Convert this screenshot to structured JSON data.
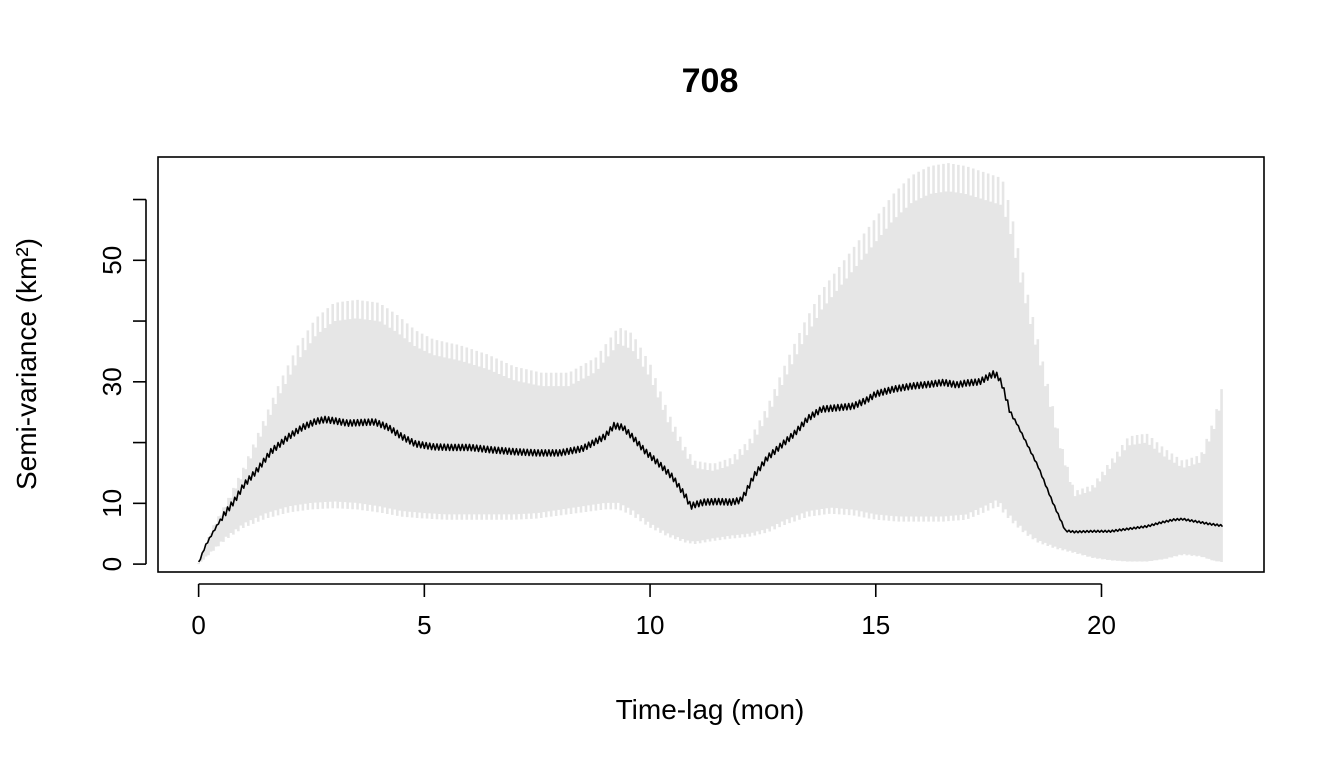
{
  "chart_data": {
    "type": "line",
    "title": "708",
    "xlabel": "Time-lag (mon)",
    "ylabel": "Semi-variance (km²)",
    "xlim": [
      -0.9,
      23.6
    ],
    "ylim": [
      -1.3,
      67
    ],
    "x_ticks": [
      0,
      5,
      10,
      15,
      20
    ],
    "x_tick_labels": [
      "0",
      "5",
      "10",
      "15",
      "20"
    ],
    "y_ticks": [
      0,
      10,
      20,
      30,
      40,
      50,
      60
    ],
    "y_tick_labels": [
      "0",
      "10",
      "",
      "30",
      "",
      "50",
      ""
    ],
    "grid": false,
    "legend": "none",
    "colors": {
      "line": "#000000",
      "band": "#e6e6e6",
      "axes": "#000000"
    },
    "series": [
      {
        "role": "estimate",
        "x": [
          0,
          0.15,
          0.3,
          0.5,
          0.8,
          1.0,
          1.3,
          1.6,
          2.0,
          2.3,
          2.6,
          2.8,
          3.0,
          3.3,
          3.6,
          3.9,
          4.2,
          4.5,
          4.8,
          5.2,
          5.6,
          6.0,
          6.5,
          7.0,
          7.5,
          8.0,
          8.5,
          9.0,
          9.2,
          9.4,
          9.6,
          9.9,
          10.2,
          10.5,
          10.8,
          10.9,
          11.0,
          11.2,
          11.5,
          11.8,
          12.0,
          12.1,
          12.3,
          12.6,
          12.9,
          13.2,
          13.5,
          13.8,
          14.1,
          14.5,
          14.8,
          15.0,
          15.4,
          15.8,
          16.2,
          16.5,
          16.8,
          17.0,
          17.3,
          17.6,
          17.7,
          17.8,
          17.9,
          18.0,
          18.1,
          18.3,
          18.6,
          18.9,
          19.2,
          19.4,
          19.8,
          20.2,
          20.6,
          21.0,
          21.3,
          21.6,
          21.8,
          22.1,
          22.4,
          22.7
        ],
        "y": [
          0.2,
          3.0,
          5.0,
          7.5,
          10.5,
          13.0,
          15.5,
          18.5,
          21.0,
          22.5,
          23.5,
          23.8,
          23.6,
          23.2,
          23.3,
          23.4,
          22.5,
          21.0,
          19.8,
          19.3,
          19.2,
          19.2,
          18.8,
          18.5,
          18.3,
          18.3,
          19.0,
          21.0,
          22.8,
          22.5,
          21.0,
          18.5,
          16.5,
          14.3,
          11.0,
          9.5,
          9.8,
          10.2,
          10.3,
          10.2,
          10.5,
          11.5,
          14.5,
          17.5,
          19.5,
          21.5,
          24.0,
          25.5,
          25.7,
          26.0,
          27.0,
          28.0,
          28.8,
          29.3,
          29.6,
          29.9,
          29.5,
          29.8,
          30.0,
          31.3,
          31.0,
          29.5,
          27.0,
          24.5,
          23.5,
          20.5,
          16.0,
          10.5,
          5.5,
          5.3,
          5.4,
          5.4,
          5.8,
          6.2,
          6.8,
          7.3,
          7.4,
          7.0,
          6.6,
          6.3
        ]
      },
      {
        "role": "band-upper",
        "x": [
          0,
          0.3,
          0.6,
          1.0,
          1.4,
          1.8,
          2.2,
          2.6,
          3.0,
          3.5,
          4.0,
          4.4,
          4.8,
          5.2,
          5.8,
          6.4,
          7.0,
          7.6,
          8.2,
          8.8,
          9.3,
          9.6,
          10.0,
          10.4,
          10.8,
          11.0,
          11.4,
          11.8,
          12.2,
          12.6,
          13.0,
          13.4,
          13.8,
          14.2,
          14.6,
          15.0,
          15.4,
          15.8,
          16.2,
          16.6,
          17.0,
          17.4,
          17.8,
          18.0,
          18.2,
          18.5,
          18.8,
          19.1,
          19.4,
          19.8,
          20.2,
          20.6,
          21.0,
          21.4,
          21.8,
          22.2,
          22.5,
          22.7
        ],
        "y": [
          0.2,
          6.0,
          10.0,
          16.0,
          23.0,
          30.0,
          36.0,
          40.5,
          43.0,
          43.5,
          43.0,
          41.0,
          38.5,
          37.0,
          36.0,
          34.5,
          32.5,
          31.5,
          31.5,
          34.0,
          39.0,
          38.0,
          33.0,
          25.0,
          19.0,
          17.0,
          16.5,
          17.5,
          20.5,
          26.0,
          33.0,
          39.5,
          45.0,
          49.0,
          53.0,
          57.0,
          61.0,
          64.0,
          65.5,
          66.0,
          65.5,
          64.5,
          63.5,
          58.0,
          50.0,
          40.0,
          30.0,
          20.0,
          12.0,
          13.0,
          17.0,
          21.0,
          21.5,
          19.0,
          17.0,
          18.0,
          24.0,
          30.0
        ]
      },
      {
        "role": "band-lower",
        "x": [
          0,
          0.3,
          0.6,
          1.0,
          1.5,
          2.0,
          2.5,
          3.0,
          3.5,
          4.0,
          4.5,
          5.0,
          5.5,
          6.0,
          6.5,
          7.0,
          7.5,
          8.0,
          8.5,
          9.0,
          9.3,
          9.6,
          10.0,
          10.4,
          10.8,
          11.0,
          11.4,
          11.8,
          12.2,
          12.6,
          13.0,
          13.5,
          14.0,
          14.5,
          15.0,
          15.5,
          16.0,
          16.5,
          17.0,
          17.4,
          17.7,
          18.0,
          18.3,
          18.6,
          19.0,
          19.4,
          19.8,
          20.2,
          20.6,
          21.0,
          21.4,
          21.8,
          22.2,
          22.5,
          22.7
        ],
        "y": [
          0.0,
          2.0,
          4.0,
          6.0,
          7.5,
          8.5,
          9.0,
          9.2,
          9.0,
          8.5,
          7.8,
          7.5,
          7.3,
          7.3,
          7.3,
          7.3,
          7.5,
          8.0,
          8.5,
          9.0,
          9.0,
          8.0,
          6.0,
          4.5,
          3.5,
          3.3,
          3.8,
          4.2,
          4.5,
          5.2,
          6.5,
          7.8,
          8.3,
          8.0,
          7.3,
          7.0,
          7.0,
          7.0,
          7.3,
          8.5,
          9.5,
          7.0,
          5.0,
          3.5,
          2.5,
          1.8,
          1.0,
          0.6,
          0.4,
          0.4,
          0.8,
          1.5,
          1.2,
          0.5,
          0.3
        ]
      }
    ]
  }
}
